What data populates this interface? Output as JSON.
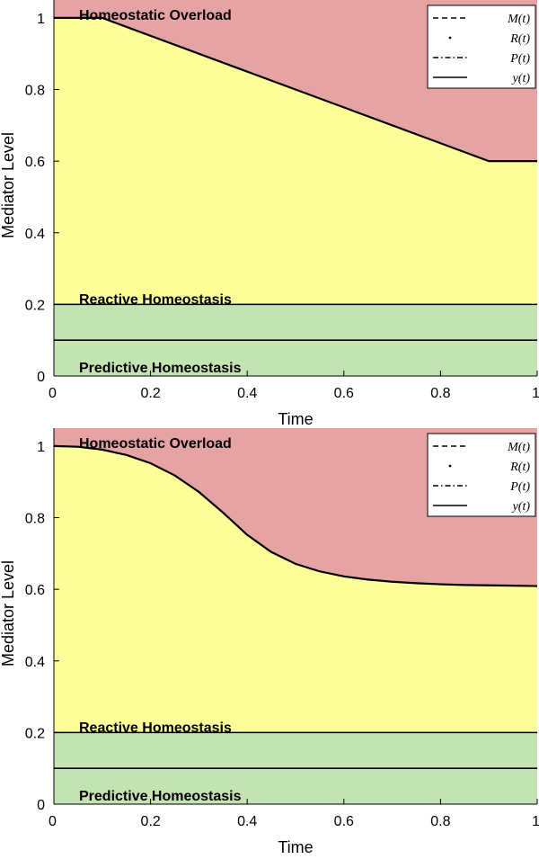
{
  "chart_data": [
    {
      "type": "area",
      "xlabel": "Time",
      "ylabel": "Mediator Level",
      "xlim": [
        0,
        1
      ],
      "ylim": [
        0,
        1.05
      ],
      "x_ticks": [
        "0",
        "0.2",
        "0.4",
        "0.6",
        "0.8",
        "1"
      ],
      "y_ticks": [
        "0",
        "0.2",
        "0.4",
        "0.6",
        "0.8",
        "1"
      ],
      "legend": {
        "placement": "top-right",
        "entries": [
          "M(t)",
          "R(t)",
          "P(t)",
          "y(t)"
        ]
      },
      "regions": [
        {
          "label": "Homeostatic Overload",
          "color": "#e6a3a3"
        },
        {
          "label": "Reactive Homeostasis",
          "color": "#ffff99"
        },
        {
          "label": "Predictive Homeostasis",
          "color": "#c4e3b3"
        }
      ],
      "reference_lines": {
        "reactive_threshold": 0.2,
        "predictive_threshold": 0.1
      },
      "series": [
        {
          "name": "y(t)",
          "x": [
            0,
            0.1,
            0.9,
            1.0
          ],
          "y": [
            1.0,
            1.0,
            0.6,
            0.6
          ]
        }
      ]
    },
    {
      "type": "area",
      "xlabel": "Time",
      "ylabel": "Mediator Level",
      "xlim": [
        0,
        1
      ],
      "ylim": [
        0,
        1.05
      ],
      "x_ticks": [
        "0",
        "0.2",
        "0.4",
        "0.6",
        "0.8",
        "1"
      ],
      "y_ticks": [
        "0",
        "0.2",
        "0.4",
        "0.6",
        "0.8",
        "1"
      ],
      "legend": {
        "placement": "top-right",
        "entries": [
          "M(t)",
          "R(t)",
          "P(t)",
          "y(t)"
        ]
      },
      "regions": [
        {
          "label": "Homeostatic Overload",
          "color": "#e6a3a3"
        },
        {
          "label": "Reactive Homeostasis",
          "color": "#ffff99"
        },
        {
          "label": "Predictive Homeostasis",
          "color": "#c4e3b3"
        }
      ],
      "reference_lines": {
        "reactive_threshold": 0.2,
        "predictive_threshold": 0.1
      },
      "series": [
        {
          "name": "y(t)",
          "x": [
            0,
            0.05,
            0.1,
            0.15,
            0.2,
            0.25,
            0.3,
            0.35,
            0.4,
            0.45,
            0.5,
            0.55,
            0.6,
            0.65,
            0.7,
            0.75,
            0.8,
            0.85,
            0.9,
            0.95,
            1.0
          ],
          "y": [
            1.0,
            0.998,
            0.99,
            0.975,
            0.952,
            0.918,
            0.872,
            0.814,
            0.752,
            0.704,
            0.671,
            0.65,
            0.636,
            0.627,
            0.621,
            0.617,
            0.614,
            0.612,
            0.611,
            0.61,
            0.609
          ]
        }
      ]
    }
  ]
}
